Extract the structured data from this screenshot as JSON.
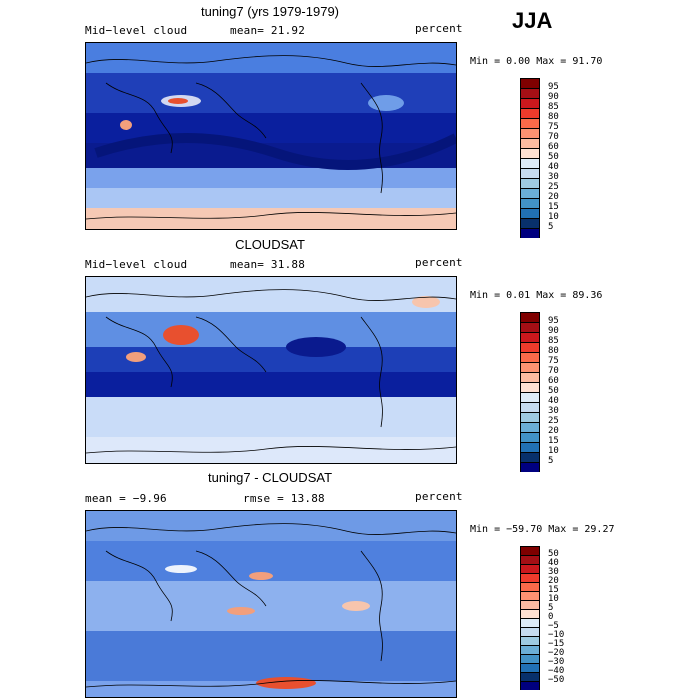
{
  "season": "JJA",
  "panels": [
    {
      "title": "tuning7 (yrs 1979-1979)",
      "left_label": "Mid−level cloud",
      "mean_label": "mean=  21.92",
      "right_label": "percent",
      "minmax": "Min =   0.00 Max =  91.70",
      "colorbar_labels": [
        "95",
        "90",
        "85",
        "80",
        "75",
        "70",
        "60",
        "50",
        "40",
        "30",
        "25",
        "20",
        "15",
        "10",
        "5"
      ]
    },
    {
      "title": "CLOUDSAT",
      "left_label": "Mid−level cloud",
      "mean_label": "mean=  31.88",
      "right_label": "percent",
      "minmax": "Min =   0.01 Max =  89.36",
      "colorbar_labels": [
        "95",
        "90",
        "85",
        "80",
        "75",
        "70",
        "60",
        "50",
        "40",
        "30",
        "25",
        "20",
        "15",
        "10",
        "5"
      ]
    },
    {
      "title": "tuning7 - CLOUDSAT",
      "left_label": "mean =  −9.96",
      "mean_label": "rmse =  13.88",
      "right_label": "percent",
      "minmax": "Min = −59.70 Max =  29.27",
      "colorbar_labels": [
        "50",
        "40",
        "30",
        "20",
        "15",
        "10",
        "5",
        "0",
        "−5",
        "−10",
        "−15",
        "−20",
        "−30",
        "−40",
        "−50"
      ]
    }
  ],
  "colors": {
    "abs_scale": [
      "#7f0000",
      "#a50f15",
      "#cb181d",
      "#ef3b2c",
      "#fb6a4a",
      "#fc9272",
      "#fcbba1",
      "#fee0d2",
      "#deebf7",
      "#c6dbef",
      "#9ecae1",
      "#6baed6",
      "#4292c6",
      "#2171b5",
      "#08306b",
      "#00007f"
    ],
    "diff_scale": [
      "#7f0000",
      "#a50f15",
      "#cb181d",
      "#ef3b2c",
      "#fb6a4a",
      "#fc9272",
      "#fcbba1",
      "#fee0d2",
      "#deebf7",
      "#c6dbef",
      "#9ecae1",
      "#6baed6",
      "#4292c6",
      "#2171b5",
      "#08306b",
      "#00007f"
    ]
  }
}
